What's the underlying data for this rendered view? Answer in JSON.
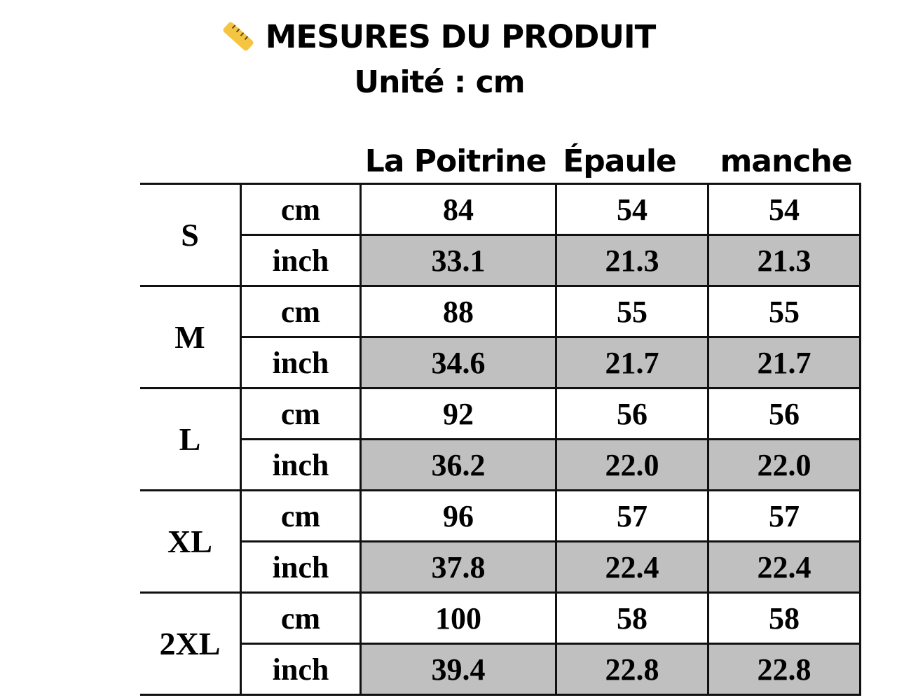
{
  "header": {
    "icon": "ruler-icon",
    "title": "MESURES DU PRODUIT",
    "subtitle": "Unité : cm"
  },
  "columns": [
    "La Poitrine",
    "Épaule",
    "manche"
  ],
  "colors": {
    "inch_row_fill": "#c0c0c0",
    "border": "#111111"
  },
  "rows": [
    {
      "size": "S",
      "cm": {
        "unit": "cm",
        "values": [
          "84",
          "54",
          "54"
        ]
      },
      "inch": {
        "unit": "inch",
        "values": [
          "33.1",
          "21.3",
          "21.3"
        ]
      }
    },
    {
      "size": "M",
      "cm": {
        "unit": "cm",
        "values": [
          "88",
          "55",
          "55"
        ]
      },
      "inch": {
        "unit": "inch",
        "values": [
          "34.6",
          "21.7",
          "21.7"
        ]
      }
    },
    {
      "size": "L",
      "cm": {
        "unit": "cm",
        "values": [
          "92",
          "56",
          "56"
        ]
      },
      "inch": {
        "unit": "inch",
        "values": [
          "36.2",
          "22.0",
          "22.0"
        ]
      }
    },
    {
      "size": "XL",
      "cm": {
        "unit": "cm",
        "values": [
          "96",
          "57",
          "57"
        ]
      },
      "inch": {
        "unit": "inch",
        "values": [
          "37.8",
          "22.4",
          "22.4"
        ]
      }
    },
    {
      "size": "2XL",
      "cm": {
        "unit": "cm",
        "values": [
          "100",
          "58",
          "58"
        ]
      },
      "inch": {
        "unit": "inch",
        "values": [
          "39.4",
          "22.8",
          "22.8"
        ]
      }
    }
  ]
}
